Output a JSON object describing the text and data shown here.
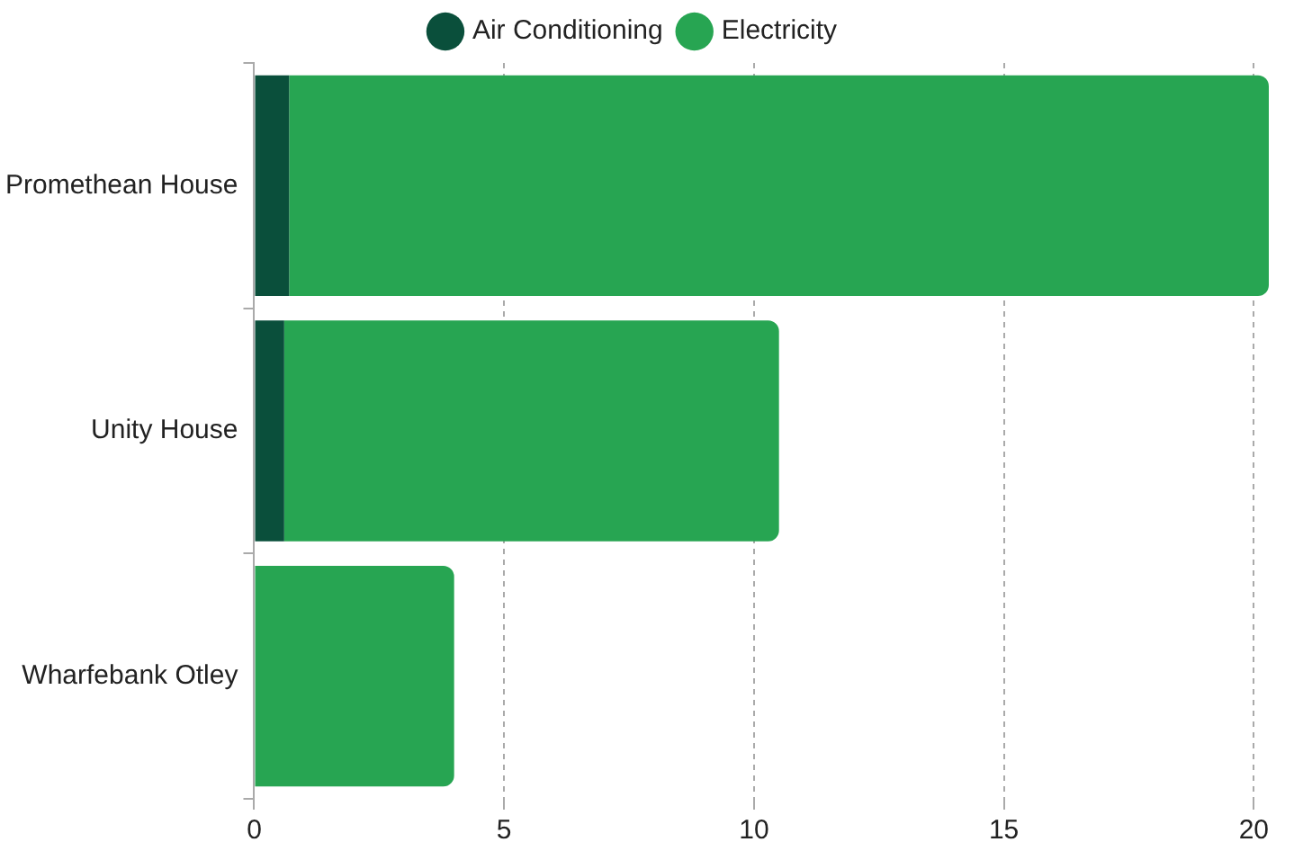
{
  "chart_data": {
    "type": "bar",
    "orientation": "horizontal",
    "stacked": true,
    "categories": [
      "Promethean House",
      "Unity House",
      "Wharfebank Otley"
    ],
    "series": [
      {
        "name": "Air Conditioning",
        "color": "#0a4f3b",
        "values": [
          0.7,
          0.6,
          0
        ]
      },
      {
        "name": "Electricity",
        "color": "#27a552",
        "values": [
          19.6,
          9.9,
          4.0
        ]
      }
    ],
    "xlim": [
      0,
      20.3
    ],
    "xticks": [
      0,
      5,
      10,
      15,
      20
    ],
    "grid": "x",
    "legend": "top"
  }
}
